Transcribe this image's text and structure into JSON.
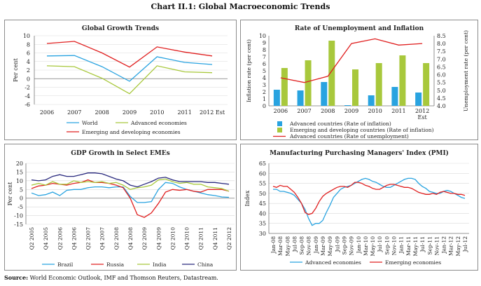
{
  "page": {
    "title": "Chart II.1: Global Macroeconomic Trends",
    "source_label": "Source:",
    "source_text": "World Economic Outlook, IMF and Thomson Reuters, Datastream."
  },
  "colors": {
    "world": "#29a3e0",
    "advanced": "#a8c83c",
    "emerging": "#e02020",
    "russia": "#e02020",
    "india": "#a8c83c",
    "china": "#2a2a7e",
    "brazil": "#29a3e0",
    "grid": "#d9d9d9"
  },
  "chart_data": [
    {
      "id": "global-growth",
      "type": "line",
      "title": "Global Growth Trends",
      "ylabel": "Per cent",
      "xlabel": "",
      "categories": [
        "2006",
        "2007",
        "2008",
        "2009",
        "2010",
        "2011",
        "2012 Est"
      ],
      "ylim": [
        -6,
        10
      ],
      "yticks": [
        -6,
        -4,
        -2,
        0,
        2,
        4,
        6,
        8,
        10
      ],
      "series": [
        {
          "name": "World",
          "color_key": "world",
          "values": [
            5.3,
            5.4,
            2.8,
            -0.6,
            5.1,
            3.8,
            3.3
          ]
        },
        {
          "name": "Advanced economies",
          "color_key": "advanced",
          "values": [
            3.0,
            2.8,
            0.1,
            -3.5,
            3.0,
            1.6,
            1.4
          ]
        },
        {
          "name": "Emerging and developing economies",
          "color_key": "emerging",
          "values": [
            8.2,
            8.7,
            6.0,
            2.7,
            7.4,
            6.2,
            5.3
          ]
        }
      ],
      "legend": [
        {
          "name": "World",
          "color_key": "world",
          "marker": "line"
        },
        {
          "name": "Advanced economies",
          "color_key": "advanced",
          "marker": "line"
        },
        {
          "name": "Emerging and developing economies",
          "color_key": "emerging",
          "marker": "line"
        }
      ]
    },
    {
      "id": "unemployment-inflation",
      "type": "bar",
      "title": "Rate of Unemployment and Inflation",
      "ylabel": "Inflation rate (per cent)",
      "y2label": "Unemployment rate (per cent)",
      "categories": [
        "2006",
        "2007",
        "2008",
        "2009",
        "2010",
        "2011",
        "2012 Est"
      ],
      "ylim": [
        0,
        10
      ],
      "yticks": [
        0,
        1,
        2,
        3,
        4,
        5,
        6,
        7,
        8,
        9,
        10
      ],
      "y2lim": [
        4.0,
        8.5
      ],
      "y2ticks": [
        "4.0",
        "4.5",
        "5.0",
        "5.5",
        "6.0",
        "6.5",
        "7.0",
        "7.5",
        "8.0",
        "8.5"
      ],
      "series": [
        {
          "name": "Advanced countries (Rate of inflation)",
          "color_key": "world",
          "values": [
            2.3,
            2.2,
            3.4,
            0.1,
            1.5,
            2.7,
            1.9
          ]
        },
        {
          "name": "Emerging and developing countries (Rate of inflation)",
          "color_key": "advanced",
          "values": [
            5.4,
            6.5,
            9.3,
            5.2,
            6.1,
            7.2,
            6.1
          ]
        }
      ],
      "line_series": {
        "name": "Advanced countries (Rate of unemployment)",
        "color_key": "emerging",
        "axis": "y2",
        "values": [
          5.8,
          5.5,
          5.9,
          8.0,
          8.3,
          7.9,
          8.0
        ]
      },
      "legend": [
        {
          "name": "Advanced countries (Rate of inflation)",
          "color_key": "world",
          "marker": "box"
        },
        {
          "name": "Emerging and developing countries (Rate of inflation)",
          "color_key": "advanced",
          "marker": "box"
        },
        {
          "name": "Advanced countries (Rate of unemployment)",
          "color_key": "emerging",
          "marker": "line"
        }
      ]
    },
    {
      "id": "gdp-emes",
      "type": "line",
      "title": "GDP Growth in Select EMEs",
      "ylabel": "Per cent",
      "categories": [
        "Q2 2005",
        "Q3 2005",
        "Q4 2005",
        "Q1 2006",
        "Q2 2006",
        "Q3 2006",
        "Q4 2006",
        "Q1 2007",
        "Q2 2007",
        "Q3 2007",
        "Q4 2007",
        "Q1 2008",
        "Q2 2008",
        "Q3 2008",
        "Q4 2008",
        "Q1 2009",
        "Q2 2009",
        "Q3 2009",
        "Q4 2009",
        "Q1 2010",
        "Q2 2010",
        "Q3 2010",
        "Q4 2010",
        "Q1 2011",
        "Q2 2011",
        "Q3 2011",
        "Q4 2011",
        "Q1 2012",
        "Q2 2012"
      ],
      "tick_labels": [
        "Q2 2005",
        "Q4 2005",
        "Q2 2006",
        "Q4 2006",
        "Q2 2007",
        "Q4 2007",
        "Q2 2008",
        "Q4 2008",
        "Q2 2009",
        "Q4 2009",
        "Q2 2010",
        "Q4 2010",
        "Q2 2011",
        "Q4 2011",
        "Q2 2012"
      ],
      "ylim": [
        -15,
        20
      ],
      "yticks": [
        -15,
        -10,
        -5,
        0,
        5,
        10,
        15,
        20
      ],
      "series": [
        {
          "name": "Brazil",
          "color_key": "brazil",
          "values": [
            3.0,
            1.5,
            2.0,
            3.5,
            1.5,
            4.5,
            5.0,
            5.0,
            6.0,
            6.5,
            6.5,
            6.0,
            6.5,
            6.5,
            1.0,
            -2.5,
            -2.5,
            -2.0,
            5.0,
            9.0,
            8.5,
            6.5,
            5.0,
            4.0,
            3.0,
            2.0,
            1.5,
            0.7,
            0.5
          ]
        },
        {
          "name": "Russia",
          "color_key": "russia",
          "values": [
            5.5,
            7.0,
            7.5,
            8.5,
            8.0,
            7.5,
            8.5,
            9.0,
            10.5,
            9.0,
            9.0,
            8.5,
            7.5,
            6.0,
            0.0,
            -9.5,
            -11.0,
            -8.5,
            -3.0,
            3.5,
            5.0,
            4.5,
            5.0,
            4.0,
            3.5,
            5.0,
            5.0,
            5.0,
            4.0
          ]
        },
        {
          "name": "India",
          "color_key": "india",
          "values": [
            7.5,
            8.5,
            7.5,
            9.5,
            8.0,
            8.0,
            10.0,
            9.0,
            9.5,
            9.0,
            9.5,
            8.5,
            9.0,
            7.5,
            5.0,
            6.0,
            6.5,
            7.5,
            10.5,
            11.0,
            9.5,
            8.5,
            9.0,
            8.0,
            8.0,
            6.5,
            6.0,
            5.5,
            4.0
          ]
        },
        {
          "name": "China",
          "color_key": "china",
          "values": [
            10.5,
            10.0,
            10.5,
            12.5,
            13.5,
            12.5,
            12.5,
            13.5,
            14.5,
            14.5,
            14.0,
            12.5,
            11.0,
            10.0,
            7.5,
            6.5,
            8.0,
            9.5,
            11.5,
            12.0,
            10.5,
            9.5,
            9.5,
            9.5,
            9.5,
            9.0,
            9.0,
            8.5,
            8.0
          ]
        }
      ],
      "legend": [
        {
          "name": "Brazil",
          "color_key": "brazil",
          "marker": "line"
        },
        {
          "name": "Russia",
          "color_key": "russia",
          "marker": "line"
        },
        {
          "name": "India",
          "color_key": "india",
          "marker": "line"
        },
        {
          "name": "China",
          "color_key": "china",
          "marker": "line"
        }
      ]
    },
    {
      "id": "pmi",
      "type": "line",
      "title": "Manufacturing Purchasing Managers' Index (PMI)",
      "ylabel": "Index",
      "ylim": [
        30,
        65
      ],
      "yticks": [
        30,
        35,
        40,
        45,
        50,
        55,
        60,
        65
      ],
      "tick_labels": [
        "Jan-08",
        "Mar-08",
        "May-08",
        "Jul-08",
        "Sep-08",
        "Nov-08",
        "Jan-09",
        "Mar-09",
        "May-09",
        "Jul-09",
        "Sep-09",
        "Nov-09",
        "Jan-10",
        "Mar-10",
        "May-10",
        "Jul-10",
        "Sep-10",
        "Nov-10",
        "Jan-11",
        "Mar-11",
        "May-11",
        "Jul-11",
        "Sep-11",
        "Nov-11",
        "Jan-12",
        "Mar-12",
        "May-12",
        "Jul-12"
      ],
      "series": [
        {
          "name": "Advanced economies",
          "color_key": "world",
          "values": [
            52,
            52,
            51,
            51,
            50.5,
            50,
            49,
            47,
            45,
            42,
            37.5,
            34,
            35,
            35,
            36.5,
            40.5,
            44,
            48,
            50,
            52,
            53,
            53.5,
            54,
            55,
            56,
            57,
            57.5,
            57,
            56,
            55.5,
            54.5,
            53.5,
            53,
            53,
            54,
            55,
            56,
            57,
            57.5,
            57.5,
            57,
            55,
            53.5,
            52.5,
            51,
            50.5,
            50,
            50,
            51,
            51.5,
            51,
            50,
            49,
            48,
            47.5
          ]
        },
        {
          "name": "Emerging economies",
          "color_key": "emerging",
          "values": [
            53.5,
            53,
            54,
            53.5,
            53.5,
            52,
            50.5,
            48,
            45,
            40.5,
            39.5,
            40,
            42.5,
            46,
            48.5,
            50,
            51,
            52,
            53,
            53.5,
            53.5,
            53,
            54,
            55.5,
            55.5,
            55,
            54,
            53.5,
            52.5,
            52,
            52,
            53,
            54,
            54.5,
            54.5,
            54,
            53.5,
            53,
            53,
            52.5,
            51.5,
            50.5,
            50,
            49.5,
            49.5,
            50,
            49.5,
            50.5,
            51,
            50.5,
            50,
            50,
            49.5,
            49.5,
            49
          ]
        }
      ],
      "legend": [
        {
          "name": "Advanced economies",
          "color_key": "world",
          "marker": "line"
        },
        {
          "name": "Emerging economies",
          "color_key": "emerging",
          "marker": "line"
        }
      ]
    }
  ]
}
